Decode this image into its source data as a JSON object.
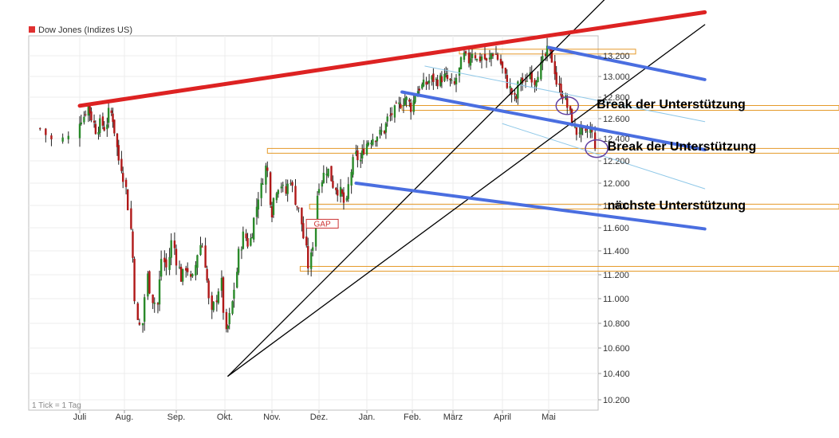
{
  "chart_data": {
    "type": "candlestick",
    "title": "Dow Jones (Indizes US)",
    "legend_color": "#e03030",
    "footnote": "1 Tick = 1 Tag",
    "y_ticks": [
      "10.200",
      "10.400",
      "10.600",
      "10.800",
      "11.000",
      "11.200",
      "11.400",
      "11.600",
      "11.800",
      "12.000",
      "12.200",
      "12.400",
      "12.600",
      "12.800",
      "13.000",
      "13.200"
    ],
    "x_labels": [
      "Juli",
      "Aug.",
      "Sep.",
      "Okt.",
      "Nov.",
      "Dez.",
      "Jan.",
      "Feb.",
      "März",
      "April",
      "Mai"
    ],
    "ylim": [
      10100,
      13350
    ],
    "grid": true,
    "colors": {
      "up": "#2a8a2a",
      "down": "#b01818",
      "wick": "#222222",
      "resistance": "#dd2222",
      "channel": "#4a6ee0",
      "channel_thin": "#8fc8e8",
      "level": "#e59a2a",
      "trend": "#000000",
      "circle": "#6040a0"
    },
    "price_path": [
      [
        "2011-06-24",
        12500
      ],
      [
        "2011-06-27",
        12380
      ],
      [
        "2011-06-30",
        12410
      ],
      [
        "2011-07-01",
        12580
      ],
      [
        "2011-07-04",
        12620
      ],
      [
        "2011-07-07",
        12720
      ],
      [
        "2011-07-10",
        12610
      ],
      [
        "2011-07-13",
        12480
      ],
      [
        "2011-07-16",
        12560
      ],
      [
        "2011-07-19",
        12500
      ],
      [
        "2011-07-22",
        12680
      ],
      [
        "2011-07-25",
        12580
      ],
      [
        "2011-07-28",
        12240
      ],
      [
        "2011-07-31",
        12120
      ],
      [
        "2011-08-03",
        11880
      ],
      [
        "2011-08-06",
        11450
      ],
      [
        "2011-08-09",
        10800
      ],
      [
        "2011-08-12",
        10760
      ],
      [
        "2011-08-15",
        11200
      ],
      [
        "2011-08-18",
        11000
      ],
      [
        "2011-08-21",
        10950
      ],
      [
        "2011-08-24",
        11350
      ],
      [
        "2011-08-27",
        11250
      ],
      [
        "2011-08-30",
        11500
      ],
      [
        "2011-09-02",
        11300
      ],
      [
        "2011-09-05",
        11150
      ],
      [
        "2011-09-08",
        11300
      ],
      [
        "2011-09-11",
        11100
      ],
      [
        "2011-09-14",
        11350
      ],
      [
        "2011-09-17",
        11500
      ],
      [
        "2011-09-20",
        11200
      ],
      [
        "2011-09-23",
        10850
      ],
      [
        "2011-09-26",
        11000
      ],
      [
        "2011-09-29",
        11150
      ],
      [
        "2011-10-02",
        10700
      ],
      [
        "2011-10-05",
        10850
      ],
      [
        "2011-10-08",
        11100
      ],
      [
        "2011-10-11",
        11400
      ],
      [
        "2011-10-14",
        11550
      ],
      [
        "2011-10-17",
        11450
      ],
      [
        "2011-10-20",
        11600
      ],
      [
        "2011-10-23",
        11850
      ],
      [
        "2011-10-26",
        12000
      ],
      [
        "2011-10-29",
        12200
      ],
      [
        "2011-11-01",
        11700
      ],
      [
        "2011-11-04",
        11950
      ],
      [
        "2011-11-07",
        12000
      ],
      [
        "2011-11-10",
        11900
      ],
      [
        "2011-11-13",
        12050
      ],
      [
        "2011-11-16",
        11850
      ],
      [
        "2011-11-19",
        11750
      ],
      [
        "2011-11-22",
        11500
      ],
      [
        "2011-11-25",
        11250
      ],
      [
        "2011-11-28",
        11500
      ],
      [
        "2011-12-01",
        11980
      ],
      [
        "2011-12-04",
        12050
      ],
      [
        "2011-12-07",
        12150
      ],
      [
        "2011-12-10",
        12000
      ],
      [
        "2011-12-13",
        11950
      ],
      [
        "2011-12-16",
        11900
      ],
      [
        "2011-12-19",
        11780
      ],
      [
        "2011-12-22",
        12100
      ],
      [
        "2011-12-25",
        12250
      ],
      [
        "2011-12-28",
        12200
      ],
      [
        "2012-01-01",
        12350
      ],
      [
        "2012-01-04",
        12400
      ],
      [
        "2012-01-07",
        12420
      ],
      [
        "2012-01-10",
        12450
      ],
      [
        "2012-01-13",
        12480
      ],
      [
        "2012-01-16",
        12600
      ],
      [
        "2012-01-19",
        12650
      ],
      [
        "2012-01-22",
        12700
      ],
      [
        "2012-01-25",
        12750
      ],
      [
        "2012-01-28",
        12800
      ],
      [
        "2012-02-01",
        12700
      ],
      [
        "2012-02-04",
        12850
      ],
      [
        "2012-02-07",
        12900
      ],
      [
        "2012-02-10",
        12920
      ],
      [
        "2012-02-13",
        12950
      ],
      [
        "2012-02-16",
        12980
      ],
      [
        "2012-02-19",
        12950
      ],
      [
        "2012-02-22",
        12980
      ],
      [
        "2012-02-25",
        13000
      ],
      [
        "2012-02-28",
        12950
      ],
      [
        "2012-03-02",
        12900
      ],
      [
        "2012-03-05",
        13050
      ],
      [
        "2012-03-08",
        13200
      ],
      [
        "2012-03-11",
        13150
      ],
      [
        "2012-03-14",
        13250
      ],
      [
        "2012-03-17",
        13150
      ],
      [
        "2012-03-20",
        13200
      ],
      [
        "2012-03-23",
        13120
      ],
      [
        "2012-03-26",
        13240
      ],
      [
        "2012-03-29",
        13200
      ],
      [
        "2012-04-01",
        13100
      ],
      [
        "2012-04-04",
        12950
      ],
      [
        "2012-04-07",
        12850
      ],
      [
        "2012-04-10",
        12750
      ],
      [
        "2012-04-13",
        13000
      ],
      [
        "2012-04-16",
        12900
      ],
      [
        "2012-04-19",
        13050
      ],
      [
        "2012-04-22",
        12950
      ],
      [
        "2012-04-25",
        13050
      ],
      [
        "2012-04-28",
        13150
      ],
      [
        "2012-05-01",
        13250
      ],
      [
        "2012-05-04",
        13150
      ],
      [
        "2012-05-07",
        12900
      ],
      [
        "2012-05-10",
        12850
      ],
      [
        "2012-05-13",
        12750
      ],
      [
        "2012-05-16",
        12600
      ],
      [
        "2012-05-19",
        12450
      ],
      [
        "2012-05-22",
        12500
      ],
      [
        "2012-05-25",
        12420
      ],
      [
        "2012-05-28",
        12500
      ],
      [
        "2012-05-31",
        12400
      ],
      [
        "2012-06-01",
        12150
      ]
    ],
    "horizontal_levels": [
      {
        "y": 13240,
        "from": "2012-03-05",
        "label": ""
      },
      {
        "y": 12700,
        "from": "2012-01-25",
        "label": ""
      },
      {
        "y": 12290,
        "from": "2011-10-29",
        "label": ""
      },
      {
        "y": 11790,
        "from": "2011-11-25",
        "label": ""
      },
      {
        "y": 11250,
        "from": "2011-11-19",
        "label": ""
      }
    ],
    "resistance_line": {
      "from": [
        "2011-07-01",
        12720
      ],
      "to": [
        "2012-08-10",
        13620
      ]
    },
    "upper_channel_lines": [
      {
        "from": [
          "2012-05-01",
          13280
        ],
        "to": [
          "2012-08-10",
          12970
        ]
      },
      {
        "from": [
          "2012-01-25",
          12850
        ],
        "to": [
          "2012-08-10",
          12300
        ]
      },
      {
        "from": [
          "2011-12-25",
          12000
        ],
        "to": [
          "2012-08-10",
          11590
        ]
      }
    ],
    "thin_channel_lines": [
      {
        "from": [
          "2012-02-10",
          13100
        ],
        "to": [
          "2012-08-10",
          12570
        ]
      },
      {
        "from": [
          "2012-04-01",
          12550
        ],
        "to": [
          "2012-08-10",
          11950
        ]
      }
    ],
    "trend_lines": [
      {
        "from": [
          "2011-10-03",
          10380
        ],
        "to": [
          "2012-06-10",
          13800
        ]
      },
      {
        "from": [
          "2011-10-03",
          10380
        ],
        "to": [
          "2012-08-10",
          13500
        ]
      }
    ],
    "gap_box": {
      "x": "2011-11-28",
      "y": 11640,
      "label": "GAP"
    },
    "markers": [
      {
        "x": "2012-05-13",
        "y": 12720
      },
      {
        "x": "2012-06-01",
        "y": 12310
      }
    ],
    "annotations": [
      {
        "text": "Break der Unterstützung",
        "x": "2012-06-01",
        "y": 12710
      },
      {
        "text": "Break der Unterstützung",
        "x": "2012-06-08",
        "y": 12305
      },
      {
        "text": "nächste Unterstützung",
        "x": "2012-06-08",
        "y": 11780
      }
    ]
  }
}
